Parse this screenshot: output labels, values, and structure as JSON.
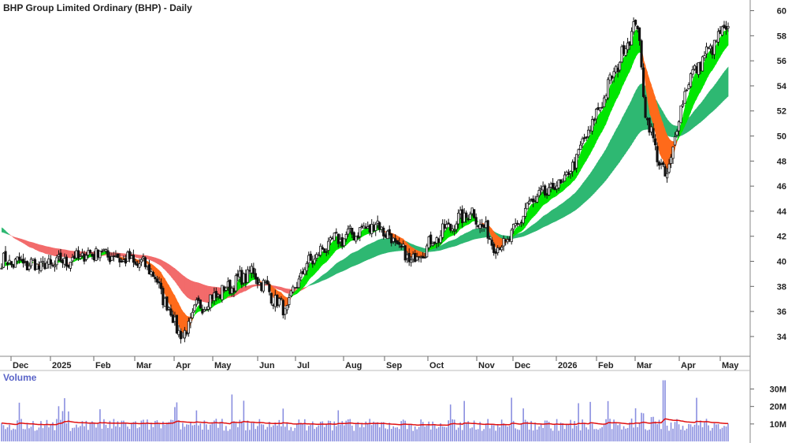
{
  "chart_data": {
    "type": "candlestick",
    "title": "BHP Group Limited Ordinary (BHP) - Daily",
    "x_tick_labels": [
      "Dec",
      "2025",
      "Feb",
      "Mar",
      "Apr",
      "May",
      "Jun",
      "Jul",
      "Aug",
      "Sep",
      "Oct",
      "Nov",
      "Dec",
      "2026",
      "Feb",
      "Mar",
      "Apr",
      "May"
    ],
    "price_axis": {
      "tick_labels": [
        "34",
        "36",
        "38",
        "40",
        "42",
        "44",
        "46",
        "48",
        "50",
        "52",
        "54",
        "56",
        "58",
        "60"
      ],
      "ylim": [
        32.8,
        60.6
      ]
    },
    "volume_panel": {
      "label": "Volume",
      "tick_labels": [
        "10M",
        "20M",
        "30M"
      ],
      "ylim": [
        0,
        37
      ]
    },
    "price_path": [
      {
        "month": "Dec",
        "value": 40.0
      },
      {
        "month": "2025",
        "value": 39.6
      },
      {
        "month": "Feb",
        "value": 40.8
      },
      {
        "month": "Mar",
        "value": 39.5
      },
      {
        "month": "Apr",
        "value": 33.8
      },
      {
        "month": "Apr-mid",
        "value": 36.2
      },
      {
        "month": "May",
        "value": 37.6
      },
      {
        "month": "Jun",
        "value": 39.2
      },
      {
        "month": "Jun-late",
        "value": 36.0
      },
      {
        "month": "Jul",
        "value": 39.5
      },
      {
        "month": "Aug",
        "value": 41.5
      },
      {
        "month": "Aug-late",
        "value": 43.0
      },
      {
        "month": "Sep",
        "value": 40.0
      },
      {
        "month": "Oct",
        "value": 42.5
      },
      {
        "month": "Oct-late",
        "value": 44.0
      },
      {
        "month": "Nov",
        "value": 41.0
      },
      {
        "month": "Nov-late",
        "value": 42.0
      },
      {
        "month": "Dec",
        "value": 44.5
      },
      {
        "month": "2026",
        "value": 46.5
      },
      {
        "month": "Feb",
        "value": 51.0
      },
      {
        "month": "Feb-late",
        "value": 59.3
      },
      {
        "month": "Mar",
        "value": 51.5
      },
      {
        "month": "Mar-mid",
        "value": 46.3
      },
      {
        "month": "Apr",
        "value": 54.0
      },
      {
        "month": "Apr-mid",
        "value": 56.0
      },
      {
        "month": "May",
        "value": 58.5
      }
    ],
    "volume_average": 9.5,
    "colors": {
      "short_group_up": "#00e600",
      "short_group_down": "#ff6a1a",
      "short_group_weak": "#f5a0a0",
      "long_group_up": "#2eb872",
      "long_group_down": "#f26b6b",
      "candle_up": "#ffffff",
      "candle_down": "#111111",
      "volume_bars": "#8a8fe0",
      "volume_average": "#e01010",
      "axis_labels": "#5a64c8"
    },
    "grid": false
  }
}
